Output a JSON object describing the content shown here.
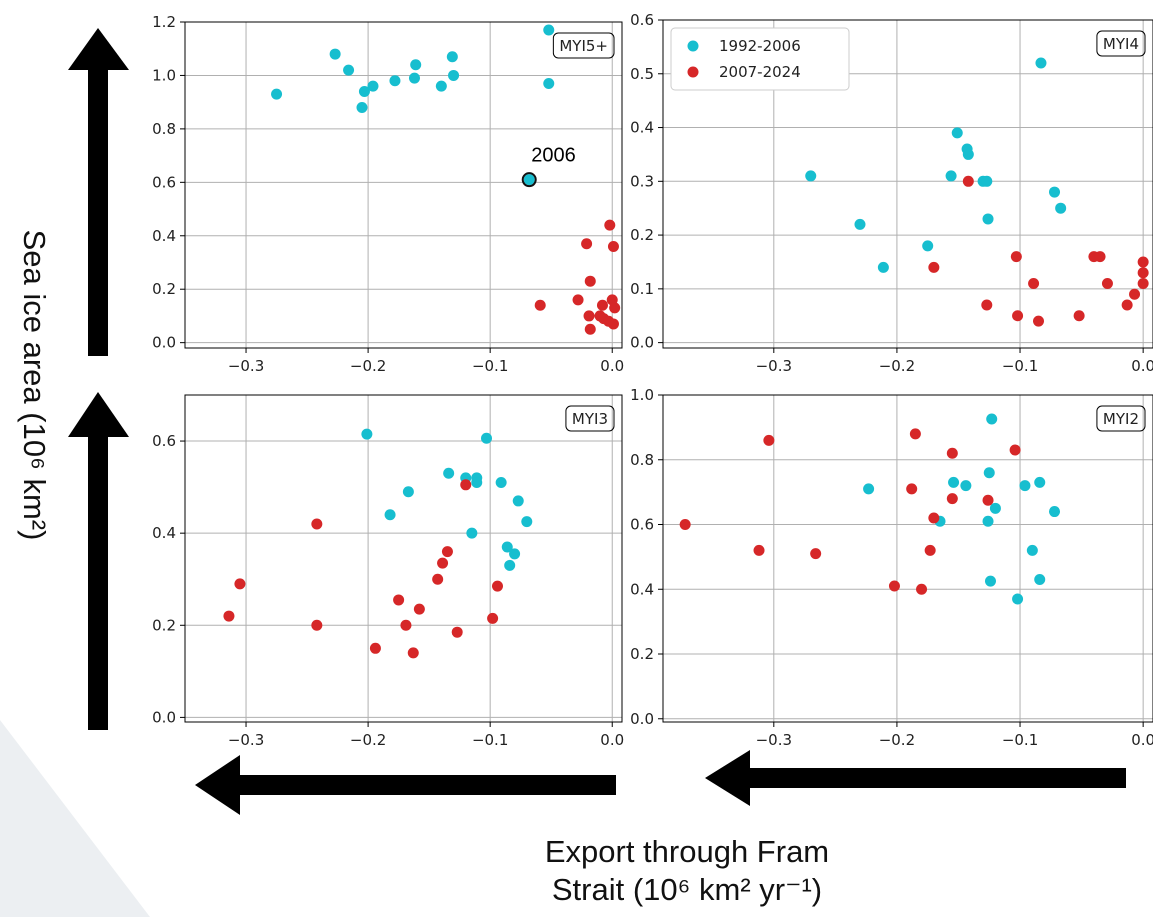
{
  "ylabel": "Sea ice area (10⁶ km²)",
  "xlabel": [
    "Export through Fram",
    "Strait (10⁶ km² yr⁻¹)"
  ],
  "chart_data": [
    {
      "type": "scatter",
      "label": "MYI5+",
      "grid": true,
      "xlim": [
        -0.35,
        0.008
      ],
      "ylim": [
        -0.02,
        1.2
      ],
      "xticks": [
        {
          "value": -0.3,
          "label": "−0.3"
        },
        {
          "value": -0.2,
          "label": "−0.2"
        },
        {
          "value": -0.1,
          "label": "−0.1"
        },
        {
          "value": 0,
          "label": "0.0"
        }
      ],
      "yticks": [
        {
          "value": 0,
          "label": "0.0"
        },
        0.2,
        0.4,
        0.6,
        0.8,
        {
          "value": 1,
          "label": "1.0"
        },
        1.2
      ],
      "annotations": [
        {
          "text": "2006",
          "x": -0.068,
          "y": 0.61
        }
      ],
      "series": [
        {
          "color": "#17becf",
          "x": [
            -0.275,
            -0.227,
            -0.216,
            -0.203,
            -0.205,
            -0.196,
            -0.178,
            -0.162,
            -0.161,
            -0.14,
            -0.131,
            -0.13,
            -0.052,
            -0.052,
            -0.068
          ],
          "values": [
            0.93,
            1.08,
            1.02,
            0.94,
            0.88,
            0.96,
            0.98,
            0.99,
            1.04,
            0.96,
            1.07,
            1.0,
            1.17,
            0.97,
            0.61
          ]
        },
        {
          "color": "#d62728",
          "x": [
            -0.002,
            -0.021,
            0.001,
            -0.018,
            -0.059,
            -0.028,
            0.0,
            -0.008,
            0.002,
            -0.019,
            -0.01,
            -0.007,
            -0.003,
            0.001,
            -0.018
          ],
          "values": [
            0.44,
            0.37,
            0.36,
            0.23,
            0.14,
            0.16,
            0.16,
            0.14,
            0.13,
            0.1,
            0.1,
            0.09,
            0.08,
            0.07,
            0.05
          ]
        }
      ]
    },
    {
      "type": "scatter",
      "label": "MYI4",
      "grid": true,
      "legend": "upper left",
      "xlim": [
        -0.39,
        0.008
      ],
      "ylim": [
        -0.01,
        0.6
      ],
      "xticks": [
        {
          "value": -0.3,
          "label": "−0.3"
        },
        {
          "value": -0.2,
          "label": "−0.2"
        },
        {
          "value": -0.1,
          "label": "−0.1"
        },
        {
          "value": 0,
          "label": "0.0"
        }
      ],
      "yticks": [
        {
          "value": 0,
          "label": "0.0"
        },
        0.1,
        0.2,
        0.3,
        0.4,
        0.5,
        0.6
      ],
      "series": [
        {
          "name": "1992-2006",
          "color": "#17becf",
          "x": [
            -0.083,
            -0.27,
            -0.23,
            -0.211,
            -0.175,
            -0.156,
            -0.151,
            -0.143,
            -0.142,
            -0.13,
            -0.127,
            -0.126,
            -0.072,
            -0.067
          ],
          "values": [
            0.52,
            0.31,
            0.22,
            0.14,
            0.18,
            0.31,
            0.39,
            0.36,
            0.35,
            0.3,
            0.3,
            0.23,
            0.28,
            0.25
          ]
        },
        {
          "name": "2007-2024",
          "color": "#d62728",
          "x": [
            -0.17,
            -0.142,
            -0.127,
            -0.103,
            -0.102,
            -0.089,
            -0.085,
            -0.052,
            -0.04,
            -0.035,
            -0.029,
            -0.013,
            -0.007,
            0.0,
            0.0,
            0.0
          ],
          "values": [
            0.14,
            0.3,
            0.07,
            0.16,
            0.05,
            0.11,
            0.04,
            0.05,
            0.16,
            0.16,
            0.11,
            0.07,
            0.09,
            0.15,
            0.13,
            0.11
          ]
        }
      ]
    },
    {
      "type": "scatter",
      "label": "MYI3",
      "grid": true,
      "xlim": [
        -0.35,
        0.008
      ],
      "ylim": [
        -0.01,
        0.7
      ],
      "xticks": [
        {
          "value": -0.3,
          "label": "−0.3"
        },
        {
          "value": -0.2,
          "label": "−0.2"
        },
        {
          "value": -0.1,
          "label": "−0.1"
        },
        {
          "value": 0,
          "label": "0.0"
        }
      ],
      "yticks": [
        {
          "value": 0,
          "label": "0.0"
        },
        0.2,
        0.4,
        0.6
      ],
      "series": [
        {
          "color": "#17becf",
          "x": [
            -0.201,
            -0.103,
            -0.167,
            -0.182,
            -0.134,
            -0.12,
            -0.111,
            -0.111,
            -0.091,
            -0.077,
            -0.07,
            -0.115,
            -0.086,
            -0.08,
            -0.084
          ],
          "values": [
            0.615,
            0.606,
            0.49,
            0.44,
            0.53,
            0.52,
            0.52,
            0.51,
            0.51,
            0.47,
            0.425,
            0.4,
            0.37,
            0.355,
            0.33
          ]
        },
        {
          "color": "#d62728",
          "x": [
            -0.314,
            -0.305,
            -0.242,
            -0.242,
            -0.194,
            -0.175,
            -0.169,
            -0.163,
            -0.158,
            -0.143,
            -0.139,
            -0.135,
            -0.12,
            -0.127,
            -0.094,
            -0.098
          ],
          "values": [
            0.22,
            0.29,
            0.42,
            0.2,
            0.15,
            0.255,
            0.2,
            0.14,
            0.235,
            0.3,
            0.335,
            0.36,
            0.505,
            0.185,
            0.285,
            0.215
          ]
        }
      ]
    },
    {
      "type": "scatter",
      "label": "MYI2",
      "grid": true,
      "xlim": [
        -0.39,
        0.008
      ],
      "ylim": [
        -0.01,
        1.0
      ],
      "xticks": [
        {
          "value": -0.3,
          "label": "−0.3"
        },
        {
          "value": -0.2,
          "label": "−0.2"
        },
        {
          "value": -0.1,
          "label": "−0.1"
        },
        {
          "value": 0,
          "label": "0.0"
        }
      ],
      "yticks": [
        {
          "value": 0,
          "label": "0.0"
        },
        0.2,
        0.4,
        0.6,
        0.8,
        {
          "value": 1,
          "label": "1.0"
        }
      ],
      "series": [
        {
          "color": "#17becf",
          "x": [
            -0.123,
            -0.223,
            -0.154,
            -0.144,
            -0.165,
            -0.125,
            -0.126,
            -0.12,
            -0.096,
            -0.084,
            -0.072,
            -0.09,
            -0.124,
            -0.084,
            -0.102
          ],
          "values": [
            0.926,
            0.71,
            0.73,
            0.72,
            0.61,
            0.76,
            0.61,
            0.65,
            0.72,
            0.73,
            0.64,
            0.52,
            0.425,
            0.43,
            0.37
          ]
        },
        {
          "color": "#d62728",
          "x": [
            -0.304,
            -0.372,
            -0.312,
            -0.266,
            -0.185,
            -0.188,
            -0.155,
            -0.155,
            -0.17,
            -0.173,
            -0.202,
            -0.18,
            -0.126,
            -0.104
          ],
          "values": [
            0.86,
            0.6,
            0.52,
            0.51,
            0.88,
            0.71,
            0.82,
            0.68,
            0.62,
            0.52,
            0.41,
            0.4,
            0.675,
            0.83
          ]
        }
      ]
    }
  ]
}
